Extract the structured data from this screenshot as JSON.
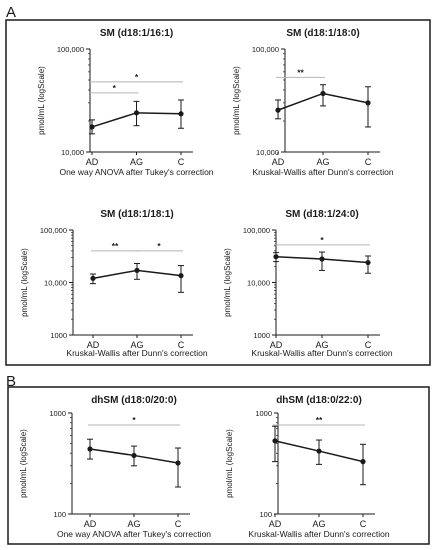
{
  "figure": {
    "panel_a_label": "A",
    "panel_b_label": "B"
  },
  "chart_data": [
    {
      "type": "line",
      "group": "A",
      "title": "SM (d18:1/16:1)",
      "ylabel": "pmol/mL (logScale)",
      "xlabel": "One way ANOVA after Tukey's correction",
      "y_scale": "log",
      "ylim": [
        10000,
        100000
      ],
      "y_ticks": [
        10000,
        100000
      ],
      "y_tick_labels": [
        "10,000",
        "100,000"
      ],
      "categories": [
        "AD",
        "AG",
        "C"
      ],
      "series": [
        {
          "values": [
            17500,
            24000,
            23500
          ],
          "err_low": [
            15000,
            18000,
            17000
          ],
          "err_high": [
            20500,
            31000,
            32000
          ]
        }
      ],
      "annotations": [
        {
          "from": 0,
          "to": 1,
          "label": "*",
          "y": 37500
        },
        {
          "from": 0,
          "to": 2,
          "label": "*",
          "y": 48000
        }
      ]
    },
    {
      "type": "line",
      "group": "A",
      "title": "SM (d18:1/18:0)",
      "ylabel": "pmol/mL (logScale)",
      "xlabel": "Kruskal-Wallis after Dunn's correction",
      "y_scale": "log",
      "ylim": [
        10000,
        100000
      ],
      "y_ticks": [
        10000,
        100000
      ],
      "y_tick_labels": [
        "10,000",
        "100,000"
      ],
      "categories": [
        "AD",
        "AG",
        "C"
      ],
      "series": [
        {
          "values": [
            25500,
            37000,
            30000
          ],
          "err_low": [
            21000,
            28000,
            17500
          ],
          "err_high": [
            32000,
            45000,
            43000
          ]
        }
      ],
      "annotations": [
        {
          "from": 0,
          "to": 1,
          "label": "**",
          "y": 53000
        }
      ]
    },
    {
      "type": "line",
      "group": "A",
      "title": "SM  (d18:1/18:1)",
      "ylabel": "pmol/mL (logScale)",
      "xlabel": "Kruskal-Wallis after Dunn's correction",
      "y_scale": "log",
      "ylim": [
        1000,
        100000
      ],
      "y_ticks": [
        1000,
        10000,
        100000
      ],
      "y_tick_labels": [
        "1000",
        "10,000",
        "100,000"
      ],
      "categories": [
        "AD",
        "AG",
        "C"
      ],
      "series": [
        {
          "values": [
            12000,
            17000,
            13500
          ],
          "err_low": [
            9500,
            11500,
            6500
          ],
          "err_high": [
            14500,
            23000,
            21000
          ]
        }
      ],
      "annotations": [
        {
          "from": 0,
          "to": 1,
          "label": "**",
          "y": 40000
        },
        {
          "from": 1,
          "to": 2,
          "label": "*",
          "y": 40000
        }
      ]
    },
    {
      "type": "line",
      "group": "A",
      "title": "SM (d18:1/24:0)",
      "ylabel": "pmol/mL (logScale)",
      "xlabel": "Kruskal-Wallis after Dunn's correction",
      "y_scale": "log",
      "ylim": [
        1000,
        100000
      ],
      "y_ticks": [
        1000,
        10000,
        100000
      ],
      "y_tick_labels": [
        "1000",
        "10,000",
        "100,000"
      ],
      "categories": [
        "AD",
        "AG",
        "C"
      ],
      "series": [
        {
          "values": [
            31000,
            28000,
            24000
          ],
          "err_low": [
            25000,
            17000,
            15000
          ],
          "err_high": [
            37000,
            38000,
            32000
          ]
        }
      ],
      "annotations": [
        {
          "from": 0,
          "to": 2,
          "label": "*",
          "y": 52000
        }
      ]
    },
    {
      "type": "line",
      "group": "B",
      "title": "dhSM  (d18:0/20:0)",
      "ylabel": "pmol/mL (logScale)",
      "xlabel": "One way ANOVA after Tukey's correction",
      "y_scale": "log",
      "ylim": [
        100,
        1000
      ],
      "y_ticks": [
        100,
        1000
      ],
      "y_tick_labels": [
        "100",
        "1000"
      ],
      "categories": [
        "AD",
        "AG",
        "C"
      ],
      "series": [
        {
          "values": [
            440,
            380,
            320
          ],
          "err_low": [
            350,
            300,
            185
          ],
          "err_high": [
            550,
            470,
            450
          ]
        }
      ],
      "annotations": [
        {
          "from": 0,
          "to": 2,
          "label": "*",
          "y": 760
        }
      ]
    },
    {
      "type": "line",
      "group": "B",
      "title": "dhSM  (d18:0/22:0)",
      "ylabel": "pmol/mL (logScale)",
      "xlabel": "Kruskal-Wallis after Dunn's correction",
      "y_scale": "log",
      "ylim": [
        100,
        1000
      ],
      "y_ticks": [
        100,
        1000
      ],
      "y_tick_labels": [
        "100",
        "1000"
      ],
      "categories": [
        "AD",
        "AG",
        "C"
      ],
      "series": [
        {
          "values": [
            530,
            420,
            330
          ],
          "err_low": [
            330,
            310,
            195
          ],
          "err_high": [
            740,
            540,
            490
          ]
        }
      ],
      "annotations": [
        {
          "from": 0,
          "to": 2,
          "label": "**",
          "y": 760
        }
      ]
    }
  ]
}
